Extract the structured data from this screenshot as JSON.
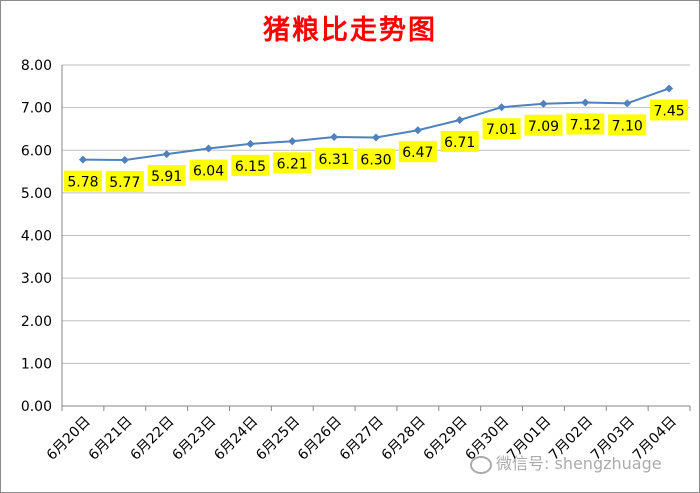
{
  "chart_data": {
    "type": "line",
    "title": "猪粮比走势图",
    "categories": [
      "6月20日",
      "6月21日",
      "6月22日",
      "6月23日",
      "6月24日",
      "6月25日",
      "6月26日",
      "6月27日",
      "6月28日",
      "6月29日",
      "6月30日",
      "7月01日",
      "7月02日",
      "7月03日",
      "7月04日"
    ],
    "series": [
      {
        "values": [
          5.78,
          5.77,
          5.91,
          6.04,
          6.15,
          6.21,
          6.31,
          6.3,
          6.47,
          6.71,
          7.01,
          7.09,
          7.12,
          7.1,
          7.45
        ]
      }
    ],
    "data_labels": [
      "5.78",
      "5.77",
      "5.91",
      "6.04",
      "6.15",
      "6.21",
      "6.31",
      "6.30",
      "6.47",
      "6.71",
      "7.01",
      "7.09",
      "7.12",
      "7.10",
      "7.45"
    ],
    "yticks": [
      "0.00",
      "1.00",
      "2.00",
      "3.00",
      "4.00",
      "5.00",
      "6.00",
      "7.00",
      "8.00"
    ],
    "ylim": [
      0,
      8
    ],
    "grid": true,
    "line_color": "#4f81bd",
    "label_bg_color": "#ffff00",
    "title_color": "#ff0000"
  },
  "watermark": {
    "text": "微信号: shengzhuage",
    "icon": "wechat-icon"
  }
}
